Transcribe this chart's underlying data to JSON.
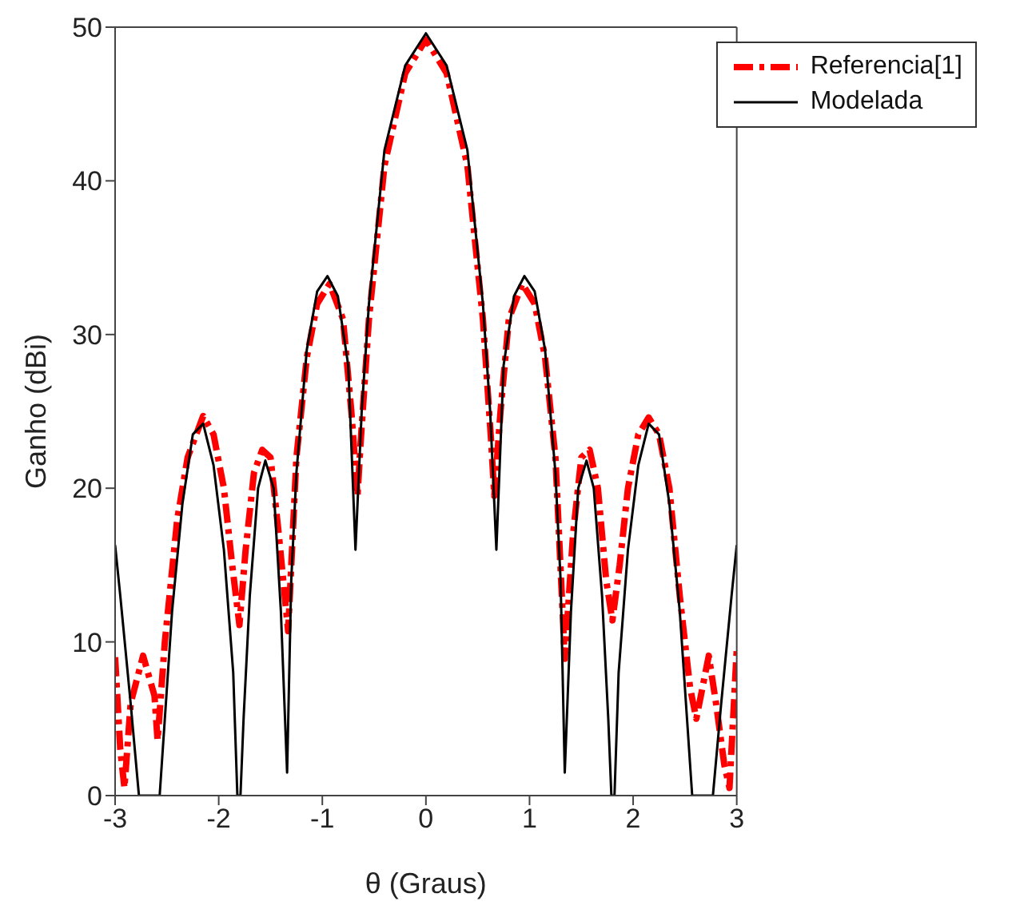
{
  "chart_data": {
    "type": "line",
    "xlabel": "θ (Graus)",
    "ylabel": "Ganho (dBi)",
    "xlim": [
      -3,
      3
    ],
    "xticks": [
      -3,
      -2,
      -1,
      0,
      1,
      2,
      3
    ],
    "ylim": [
      0,
      50
    ],
    "yticks": [
      0,
      10,
      20,
      30,
      40,
      50
    ],
    "grid": false,
    "legend": "top right",
    "marker": "none",
    "series": [
      {
        "name": "Referencia[1]",
        "color": "#ff0000",
        "line_style": "dashed",
        "x": [
          -3,
          -2.95,
          -2.91,
          -2.85,
          -2.73,
          -2.62,
          -2.59,
          -2.52,
          -2.4,
          -2.3,
          -2.15,
          -2.05,
          -1.95,
          -1.87,
          -1.8,
          -1.74,
          -1.66,
          -1.58,
          -1.5,
          -1.42,
          -1.33,
          -1.25,
          -1.15,
          -1.05,
          -0.93,
          -0.8,
          -0.72,
          -0.66,
          -0.63,
          -0.55,
          -0.4,
          -0.2,
          0,
          0.2,
          0.4,
          0.55,
          0.63,
          0.66,
          0.72,
          0.8,
          0.93,
          1.05,
          1.15,
          1.25,
          1.34,
          1.42,
          1.5,
          1.58,
          1.66,
          1.74,
          1.8,
          1.87,
          1.95,
          2.05,
          2.15,
          2.25,
          2.35,
          2.45,
          2.55,
          2.61,
          2.73,
          2.8,
          2.88,
          2.93,
          3
        ],
        "values": [
          9,
          3,
          0.5,
          6,
          9.1,
          6.5,
          3.6,
          10,
          18,
          22,
          24.7,
          23.5,
          20,
          15,
          11.1,
          16,
          21,
          22.5,
          22,
          17,
          10.7,
          22,
          28.5,
          32,
          33.3,
          31,
          25,
          19.5,
          23,
          31,
          41,
          47,
          49.2,
          47,
          41,
          31,
          23,
          19.5,
          25,
          31,
          33.3,
          32,
          28.5,
          22,
          8.9,
          17,
          22,
          22.5,
          20,
          14,
          11.4,
          15,
          20,
          23.5,
          24.6,
          23.5,
          20,
          13,
          7,
          5,
          9.1,
          6,
          2,
          0.5,
          9.5
        ]
      },
      {
        "name": "Modelada",
        "color": "#000000",
        "line_style": "solid",
        "x": [
          -3,
          -2.95,
          -2.85,
          -2.77,
          -2.6,
          -2.57,
          -2.52,
          -2.45,
          -2.35,
          -2.25,
          -2.15,
          -2.05,
          -1.95,
          -1.86,
          -1.82,
          -1.79,
          -1.76,
          -1.7,
          -1.62,
          -1.55,
          -1.47,
          -1.4,
          -1.34,
          -1.3,
          -1.25,
          -1.15,
          -1.05,
          -0.95,
          -0.85,
          -0.75,
          -0.68,
          -0.62,
          -0.55,
          -0.4,
          -0.2,
          0,
          0.2,
          0.4,
          0.55,
          0.62,
          0.68,
          0.75,
          0.85,
          0.95,
          1.05,
          1.15,
          1.25,
          1.3,
          1.34,
          1.4,
          1.47,
          1.55,
          1.62,
          1.7,
          1.76,
          1.79,
          1.82,
          1.86,
          1.95,
          2.05,
          2.15,
          2.25,
          2.35,
          2.45,
          2.52,
          2.57,
          2.6,
          2.77,
          2.85,
          2.95,
          3
        ],
        "values": [
          16.3,
          13,
          6,
          0,
          0,
          0,
          5,
          12,
          19,
          23.5,
          24.2,
          21.5,
          16,
          8,
          0,
          0,
          5,
          13,
          20,
          21.8,
          20,
          12,
          1.5,
          14,
          21,
          29,
          32.8,
          33.8,
          32.5,
          28,
          16,
          25,
          32,
          42,
          47.5,
          49.6,
          47.5,
          42,
          32,
          25,
          16,
          28,
          32.5,
          33.8,
          32.8,
          29,
          21,
          14,
          1.5,
          12,
          20,
          21.8,
          20,
          13,
          5,
          0,
          0,
          8,
          16,
          21.5,
          24.2,
          23.5,
          19,
          12,
          5,
          0,
          0,
          0,
          6,
          13,
          16.3
        ]
      }
    ]
  }
}
